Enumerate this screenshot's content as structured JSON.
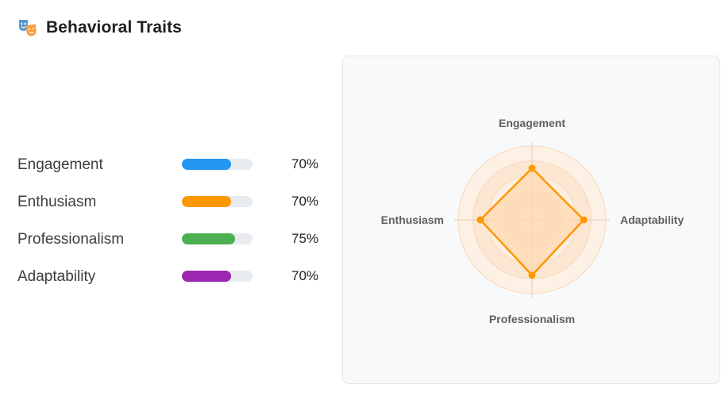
{
  "header": {
    "title": "Behavioral Traits",
    "icon": "theater-masks-icon"
  },
  "traits": [
    {
      "label": "Engagement",
      "value": 70,
      "value_text": "70%",
      "color": "#2196f3"
    },
    {
      "label": "Enthusiasm",
      "value": 70,
      "value_text": "70%",
      "color": "#ff9800"
    },
    {
      "label": "Professionalism",
      "value": 75,
      "value_text": "75%",
      "color": "#4caf50"
    },
    {
      "label": "Adaptability",
      "value": 70,
      "value_text": "70%",
      "color": "#9c27b0"
    }
  ],
  "chart_data": {
    "type": "radar",
    "axes": [
      "Engagement",
      "Adaptability",
      "Professionalism",
      "Enthusiasm"
    ],
    "values": [
      70,
      70,
      75,
      70
    ],
    "range": [
      0,
      100
    ],
    "series_color": "#ff9800",
    "fill_color": "#ffd8b0"
  }
}
